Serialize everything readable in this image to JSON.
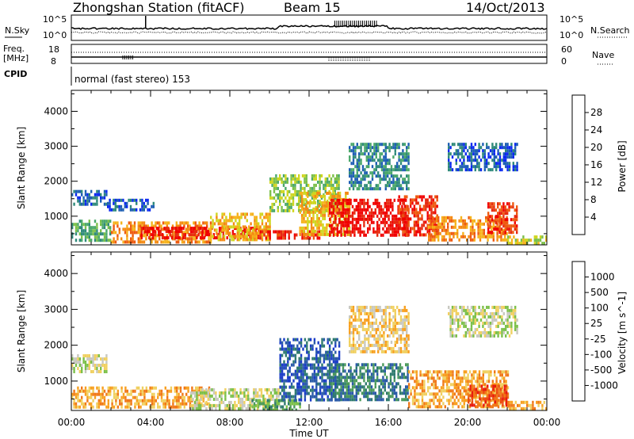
{
  "header": {
    "station": "Zhongshan Station (fitACF)",
    "beam": "Beam 15",
    "date": "14/Oct/2013"
  },
  "summary_panels": {
    "nsky_label": "N.Sky",
    "nsky_top_tick": "10^5",
    "nsky_bottom_tick": "10^0",
    "nsearch_label": "N.Search",
    "nsearch_top_tick": "10^5",
    "nsearch_bottom_tick": "10^0",
    "freq_label": "Freq.",
    "freq_unit": "[MHz]",
    "freq_top_tick": "18",
    "freq_bottom_tick": "8",
    "nave_label": "Nave",
    "nave_top_tick": "60",
    "nave_bottom_tick": "0",
    "cpid_label": "CPID",
    "cpid_value": "normal (fast stereo) 153"
  },
  "chart_data": [
    {
      "type": "heatmap",
      "quantity": "Power",
      "ylabel": "Slant Range [km]",
      "xlabel": "Time UT",
      "xlim": [
        0,
        24
      ],
      "ylim": [
        180,
        4600
      ],
      "x_tick_labels": [
        "00:00",
        "04:00",
        "08:00",
        "12:00",
        "16:00",
        "20:00",
        "00:00"
      ],
      "y_ticks": [
        1000,
        2000,
        3000,
        4000
      ],
      "colorbar": {
        "label": "Power [dB]",
        "ticks": [
          4,
          8,
          12,
          16,
          20,
          24,
          28
        ],
        "colors": [
          "#0a28f0",
          "#1e5fb4",
          "#2f8a7a",
          "#4ba86b",
          "#7cc04a",
          "#cfd61f",
          "#f6b21a",
          "#f48a12",
          "#ee5a10",
          "#e62a10",
          "#f00000"
        ]
      },
      "regions": [
        {
          "t0": 0.0,
          "t1": 1.8,
          "r0": 1300,
          "r1": 1750,
          "level": 1
        },
        {
          "t0": 1.8,
          "t1": 4.2,
          "r0": 1200,
          "r1": 1500,
          "level": 1
        },
        {
          "t0": 0.0,
          "t1": 2.0,
          "r0": 300,
          "r1": 900,
          "level": 3
        },
        {
          "t0": 2.0,
          "t1": 7.0,
          "r0": 300,
          "r1": 850,
          "level": 7
        },
        {
          "t0": 3.5,
          "t1": 9.5,
          "r0": 400,
          "r1": 700,
          "level": 10
        },
        {
          "t0": 7.0,
          "t1": 10.0,
          "r0": 300,
          "r1": 1100,
          "level": 6
        },
        {
          "t0": 9.5,
          "t1": 12.5,
          "r0": 350,
          "r1": 600,
          "level": 9
        },
        {
          "t0": 10.0,
          "t1": 13.5,
          "r0": 1200,
          "r1": 2200,
          "level": 4
        },
        {
          "t0": 11.5,
          "t1": 14.0,
          "r0": 500,
          "r1": 1700,
          "level": 6
        },
        {
          "t0": 13.0,
          "t1": 17.0,
          "r0": 500,
          "r1": 1500,
          "level": 10
        },
        {
          "t0": 14.0,
          "t1": 17.0,
          "r0": 1800,
          "r1": 3100,
          "level": 2
        },
        {
          "t0": 16.5,
          "t1": 18.5,
          "r0": 500,
          "r1": 1600,
          "level": 9
        },
        {
          "t0": 18.0,
          "t1": 22.0,
          "r0": 300,
          "r1": 1000,
          "level": 7
        },
        {
          "t0": 19.0,
          "t1": 22.5,
          "r0": 2300,
          "r1": 3100,
          "level": 1
        },
        {
          "t0": 21.0,
          "t1": 22.5,
          "r0": 500,
          "r1": 1400,
          "level": 9
        },
        {
          "t0": 22.0,
          "t1": 24.0,
          "r0": 200,
          "r1": 450,
          "level": 5
        }
      ]
    },
    {
      "type": "heatmap",
      "quantity": "Velocity",
      "ylabel": "Slant Range [km]",
      "xlabel": "Time UT",
      "xlim": [
        0,
        24
      ],
      "ylim": [
        180,
        4600
      ],
      "x_tick_labels": [
        "00:00",
        "04:00",
        "08:00",
        "12:00",
        "16:00",
        "20:00",
        "00:00"
      ],
      "y_ticks": [
        1000,
        2000,
        3000,
        4000
      ],
      "colorbar": {
        "label": "Velocity [m s^-1]",
        "ticks": [
          "1000",
          "500",
          "100",
          "25",
          "-25",
          "-100",
          "-500",
          "-1000"
        ],
        "colors": [
          "#1a3cc8",
          "#2a5aa8",
          "#2e7a6e",
          "#4b9a5a",
          "#7cc04a",
          "#c8c8c0",
          "#f0d060",
          "#f8a020",
          "#f07818",
          "#ec4a10",
          "#e81a10"
        ]
      },
      "regions": [
        {
          "t0": 0.0,
          "t1": 1.8,
          "r0": 1300,
          "r1": 1750,
          "level": 5
        },
        {
          "t0": 0.0,
          "t1": 7.0,
          "r0": 250,
          "r1": 850,
          "level": 3
        },
        {
          "t0": 6.0,
          "t1": 10.5,
          "r0": 200,
          "r1": 800,
          "level": 5
        },
        {
          "t0": 9.0,
          "t1": 11.5,
          "r0": 200,
          "r1": 500,
          "level": 7
        },
        {
          "t0": 10.5,
          "t1": 13.5,
          "r0": 500,
          "r1": 2200,
          "level": 9
        },
        {
          "t0": 13.0,
          "t1": 17.0,
          "r0": 500,
          "r1": 1500,
          "level": 8
        },
        {
          "t0": 14.0,
          "t1": 17.0,
          "r0": 1800,
          "r1": 3100,
          "level": 4
        },
        {
          "t0": 17.0,
          "t1": 22.0,
          "r0": 300,
          "r1": 1300,
          "level": 3
        },
        {
          "t0": 19.0,
          "t1": 22.5,
          "r0": 2300,
          "r1": 3100,
          "level": 5
        },
        {
          "t0": 20.0,
          "t1": 22.0,
          "r0": 300,
          "r1": 900,
          "level": 1
        },
        {
          "t0": 22.0,
          "t1": 24.0,
          "r0": 200,
          "r1": 450,
          "level": 3
        }
      ]
    }
  ]
}
